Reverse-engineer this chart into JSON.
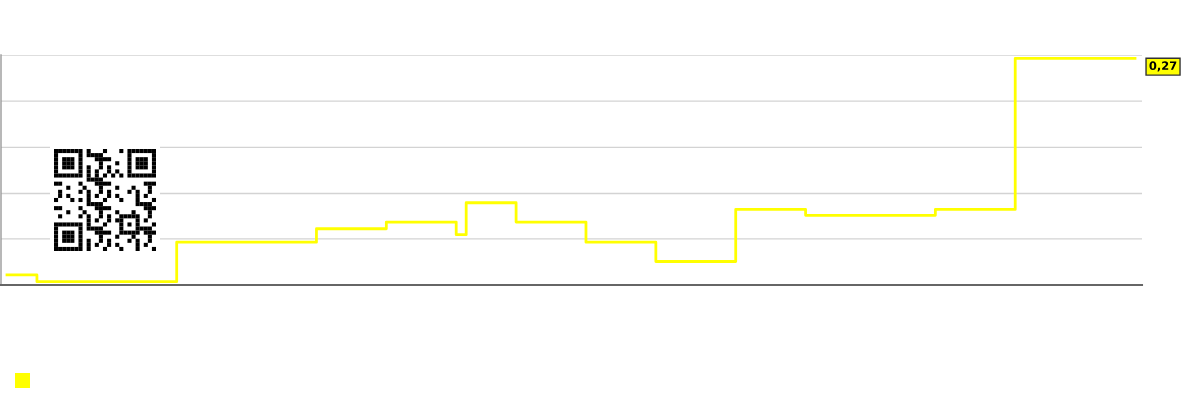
{
  "chart_data": {
    "type": "step",
    "grid": "y",
    "ylim": [
      0,
      0.274
    ],
    "yticks": [
      {
        "value": 0,
        "label": null
      },
      {
        "value": 0.055,
        "label": null
      },
      {
        "value": 0.109,
        "label": null
      },
      {
        "value": 0.164,
        "label": null
      },
      {
        "value": 0.219,
        "label": null
      },
      {
        "value": 0.274,
        "label": null
      }
    ],
    "categories": [
      null,
      null,
      null,
      null,
      null,
      null,
      null,
      null,
      null,
      null,
      null,
      null,
      null,
      null,
      null,
      null,
      null,
      null,
      null,
      null,
      null,
      null,
      null,
      null,
      null,
      null,
      null,
      null,
      null,
      null,
      null,
      null,
      null,
      null,
      null,
      null,
      null,
      null,
      null,
      null,
      null,
      null,
      null,
      null,
      null,
      null,
      null,
      null,
      null,
      null,
      null,
      null,
      null,
      null,
      null,
      null,
      null,
      null,
      null,
      null,
      null,
      null,
      null,
      null,
      null,
      null,
      null,
      null,
      null,
      null,
      null,
      null,
      null,
      null,
      null,
      null,
      null,
      null,
      null,
      null,
      null,
      null,
      null,
      null,
      null,
      null,
      null,
      null,
      null,
      null,
      null,
      null,
      null,
      null,
      null,
      null,
      null,
      null,
      null,
      null,
      null,
      null,
      null,
      null,
      null,
      null,
      null,
      null,
      null,
      null,
      null,
      null,
      null,
      null
    ],
    "series": [
      {
        "color": "#ffff00",
        "values": [
          0.012,
          0.012,
          0.012,
          0.004,
          0.004,
          0.004,
          0.004,
          0.004,
          0.004,
          0.004,
          0.004,
          0.004,
          0.004,
          0.004,
          0.004,
          0.004,
          0.004,
          0.051,
          0.051,
          0.051,
          0.051,
          0.051,
          0.051,
          0.051,
          0.051,
          0.051,
          0.051,
          0.051,
          0.051,
          0.051,
          0.051,
          0.067,
          0.067,
          0.067,
          0.067,
          0.067,
          0.067,
          0.067,
          0.075,
          0.075,
          0.075,
          0.075,
          0.075,
          0.075,
          0.075,
          0.06,
          0.098,
          0.098,
          0.098,
          0.098,
          0.098,
          0.075,
          0.075,
          0.075,
          0.075,
          0.075,
          0.075,
          0.075,
          0.051,
          0.051,
          0.051,
          0.051,
          0.051,
          0.051,
          0.051,
          0.028,
          0.028,
          0.028,
          0.028,
          0.028,
          0.028,
          0.028,
          0.028,
          0.09,
          0.09,
          0.09,
          0.09,
          0.09,
          0.09,
          0.09,
          0.083,
          0.083,
          0.083,
          0.083,
          0.083,
          0.083,
          0.083,
          0.083,
          0.083,
          0.083,
          0.083,
          0.083,
          0.083,
          0.09,
          0.09,
          0.09,
          0.09,
          0.09,
          0.09,
          0.09,
          0.09,
          0.27,
          0.27,
          0.27,
          0.27,
          0.27,
          0.27,
          0.27,
          0.27,
          0.27,
          0.27,
          0.27,
          0.27,
          0.27
        ],
        "value_labels": [
          null,
          null,
          null,
          null,
          null,
          null,
          null,
          null,
          null,
          null,
          null,
          null,
          null,
          null,
          null,
          null,
          null,
          null,
          null,
          null,
          null,
          null,
          null,
          null,
          null,
          null,
          null,
          null,
          null,
          null,
          null,
          null,
          null,
          null,
          null,
          null,
          null,
          null,
          null,
          null,
          null,
          null,
          null,
          null,
          null,
          null,
          null,
          null,
          null,
          null,
          null,
          null,
          null,
          null,
          null,
          null,
          null,
          null,
          null,
          null,
          null,
          null,
          null,
          null,
          null,
          null,
          null,
          null,
          null,
          null,
          null,
          null,
          null,
          null,
          null,
          null,
          null,
          null,
          null,
          null,
          null,
          null,
          null,
          null,
          null,
          null,
          null,
          null,
          null,
          null,
          null,
          null,
          null,
          null,
          null,
          null,
          null,
          null,
          null,
          null,
          null,
          null,
          null,
          null,
          null,
          null,
          null,
          null,
          null,
          null,
          null,
          null,
          null,
          "0,27"
        ]
      }
    ]
  }
}
